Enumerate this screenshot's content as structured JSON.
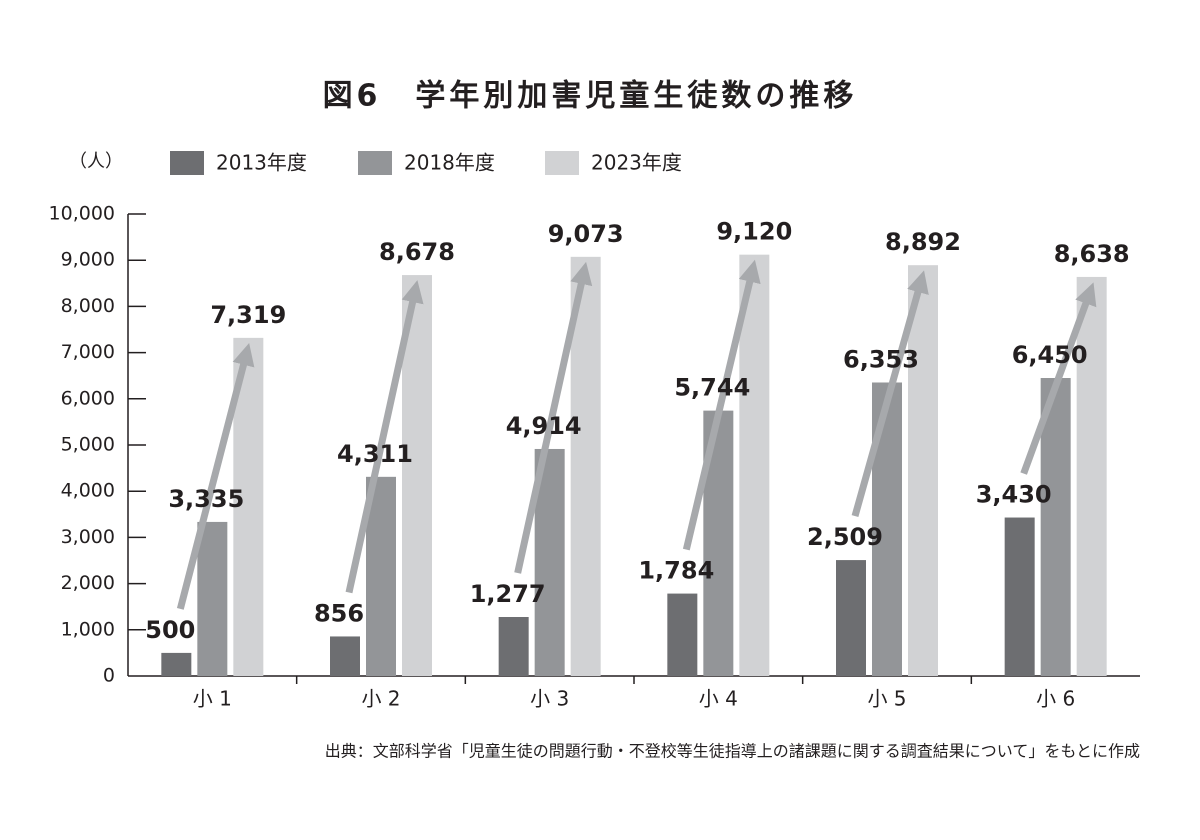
{
  "chart_data": {
    "type": "bar",
    "title": "図6　学年別加害児童生徒数の推移",
    "y_label": "（人）",
    "source": "出典：文部科学省「児童生徒の問題行動・不登校等生徒指導上の諸課題に関する調査結果について」をもとに作成",
    "categories": [
      "小 1",
      "小 2",
      "小 3",
      "小 4",
      "小 5",
      "小 6"
    ],
    "series": [
      {
        "name": "2013年度",
        "color": "#6d6e71",
        "values": [
          500,
          856,
          1277,
          1784,
          2509,
          3430
        ],
        "value_labels": [
          "500",
          "856",
          "1,277",
          "1,784",
          "2,509",
          "3,430"
        ]
      },
      {
        "name": "2018年度",
        "color": "#939598",
        "values": [
          3335,
          4311,
          4914,
          5744,
          6353,
          6450
        ],
        "value_labels": [
          "3,335",
          "4,311",
          "4,914",
          "5,744",
          "6,353",
          "6,450"
        ]
      },
      {
        "name": "2023年度",
        "color": "#d1d2d4",
        "values": [
          7319,
          8678,
          9073,
          9120,
          8892,
          8638
        ],
        "value_labels": [
          "7,319",
          "8,678",
          "9,073",
          "9,120",
          "8,892",
          "8,638"
        ]
      }
    ],
    "arrow_color": "#a7a9ac",
    "ylim": [
      0,
      10000
    ],
    "yticks": [
      0,
      {
        "value": 1000,
        "label": "1,000"
      },
      {
        "value": 2000,
        "label": "2,000"
      },
      {
        "value": 3000,
        "label": "3,000"
      },
      {
        "value": 4000,
        "label": "4,000"
      },
      {
        "value": 5000,
        "label": "5,000"
      },
      {
        "value": 6000,
        "label": "6,000"
      },
      {
        "value": 7000,
        "label": "7,000"
      },
      {
        "value": 8000,
        "label": "8,000"
      },
      {
        "value": 9000,
        "label": "9,000"
      },
      {
        "value": 10000,
        "label": "10,000"
      }
    ]
  }
}
